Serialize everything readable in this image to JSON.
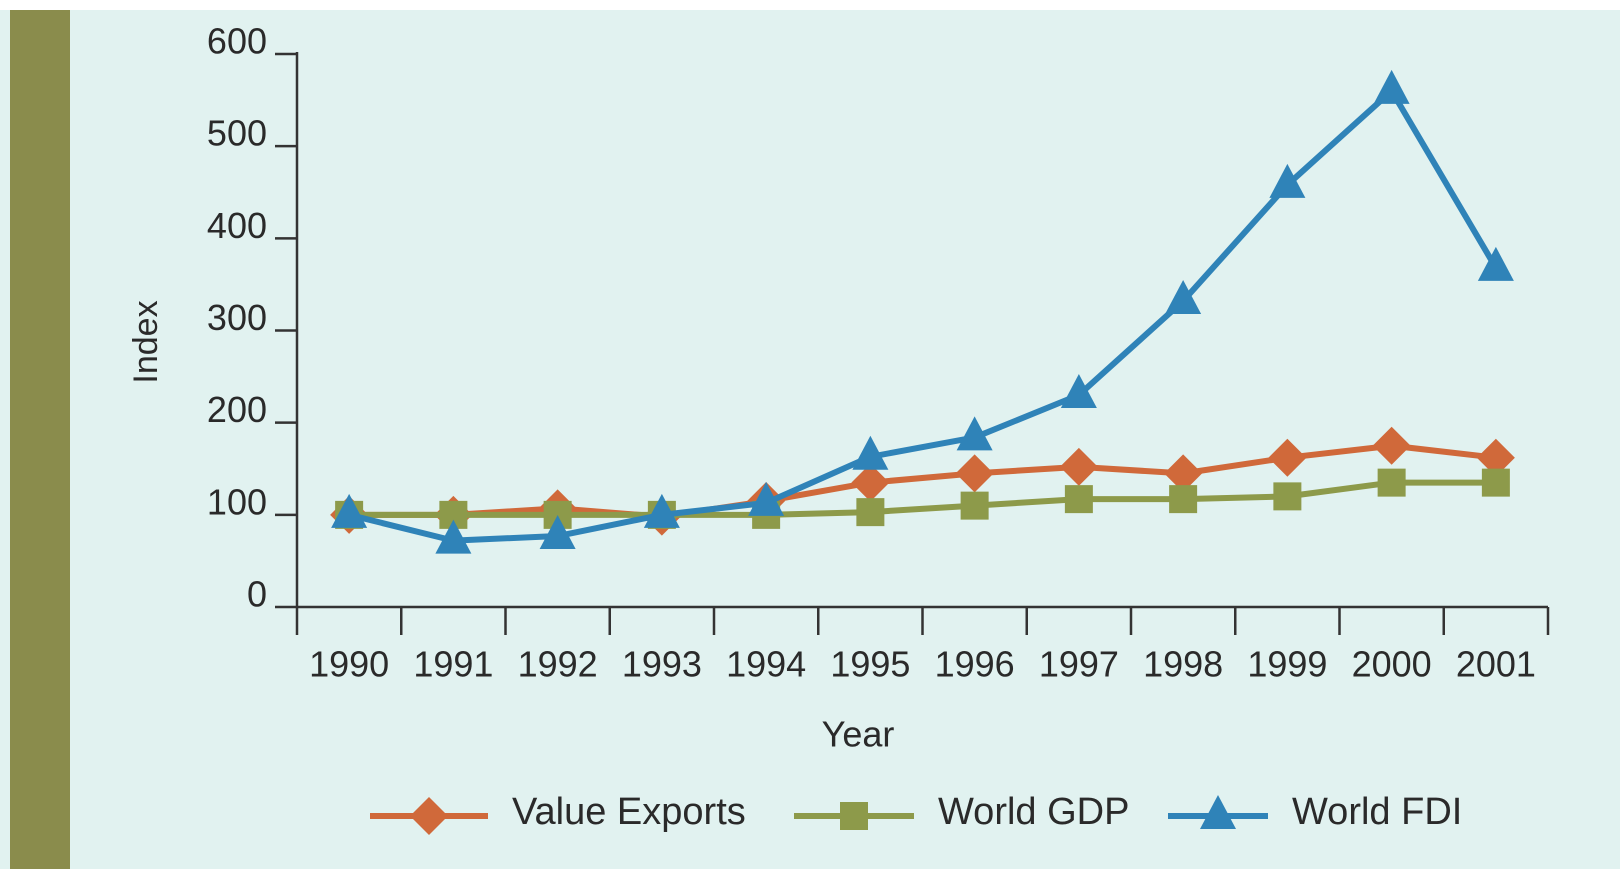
{
  "chart_data": {
    "type": "line",
    "x_label": "Year",
    "y_label": "Index",
    "categories": [
      "1990",
      "1991",
      "1992",
      "1993",
      "1994",
      "1995",
      "1996",
      "1997",
      "1998",
      "1999",
      "2000",
      "2001"
    ],
    "series": [
      {
        "name": "Value Exports",
        "color": "#d0693a",
        "marker": "diamond",
        "values": [
          100,
          100,
          107,
          98,
          115,
          135,
          145,
          152,
          145,
          162,
          175,
          162
        ]
      },
      {
        "name": "World GDP",
        "color": "#8d9a4a",
        "marker": "square",
        "values": [
          100,
          100,
          100,
          100,
          100,
          103,
          110,
          117,
          117,
          120,
          135,
          135
        ]
      },
      {
        "name": "World FDI",
        "color": "#2f83b8",
        "marker": "triangle",
        "values": [
          100,
          72,
          77,
          100,
          113,
          163,
          184,
          230,
          332,
          458,
          560,
          368
        ]
      }
    ],
    "ylim": [
      0,
      600
    ],
    "yticks": [
      0,
      100,
      200,
      300,
      400,
      500,
      600
    ],
    "grid": false,
    "legend": "bottom"
  }
}
